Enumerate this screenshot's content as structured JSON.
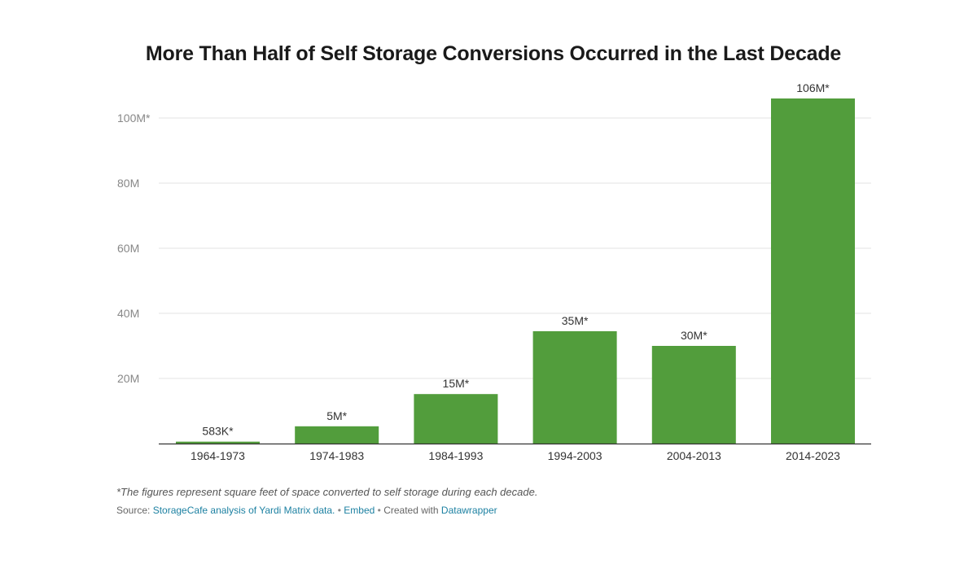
{
  "chart_data": {
    "type": "bar",
    "title": "More Than Half of Self Storage Conversions Occurred in the Last Decade",
    "xlabel": "",
    "ylabel": "",
    "categories": [
      "1964-1973",
      "1974-1983",
      "1984-1993",
      "1994-2003",
      "2004-2013",
      "2014-2023"
    ],
    "values": [
      0.583,
      5.3,
      15.2,
      34.5,
      30,
      106
    ],
    "value_labels": [
      "583K*",
      "5M*",
      "15M*",
      "35M*",
      "30M*",
      "106M*"
    ],
    "ylim": [
      0,
      106
    ],
    "yticks": [
      20,
      40,
      60,
      80,
      100
    ],
    "ytick_labels": [
      "20M",
      "40M",
      "60M",
      "80M",
      "100M*"
    ],
    "grid": true,
    "bar_color": "#529d3c"
  },
  "footer": {
    "note": "*The figures represent square feet of space converted to self storage during each decade.",
    "source_label": "Source:",
    "source_link": "StorageCafe analysis of Yardi Matrix data.",
    "dot1": "•",
    "embed": "Embed",
    "dot2": "•",
    "created_with": "Created with",
    "tool": "Datawrapper"
  }
}
